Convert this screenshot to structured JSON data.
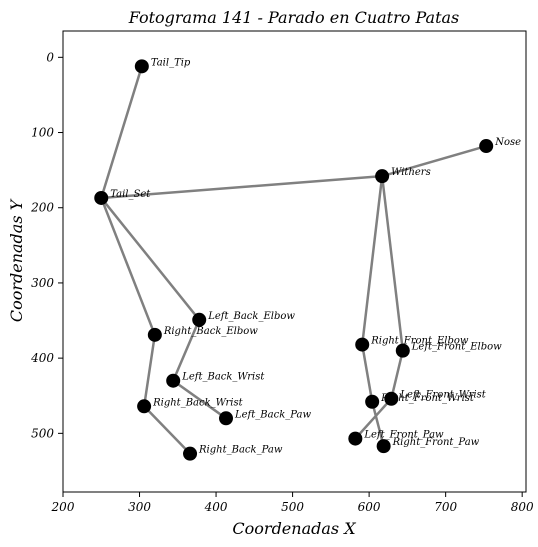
{
  "chart_data": {
    "type": "scatter",
    "title": "Fotograma 141 - Parado en Cuatro Patas",
    "xlabel": "Coordenadas X",
    "ylabel": "Coordenadas Y",
    "xlim": [
      200,
      805
    ],
    "ylim": [
      -35,
      578
    ],
    "y_inverted": true,
    "grid": false,
    "xticks": [
      200,
      300,
      400,
      500,
      600,
      700,
      800
    ],
    "yticks": [
      0,
      100,
      200,
      300,
      400,
      500
    ],
    "keypoints": [
      {
        "name": "Tail_Tip",
        "x": 303,
        "y": 12
      },
      {
        "name": "Tail_Set",
        "x": 250,
        "y": 187
      },
      {
        "name": "Nose",
        "x": 753,
        "y": 118
      },
      {
        "name": "Withers",
        "x": 617,
        "y": 158
      },
      {
        "name": "Left_Back_Elbow",
        "x": 378,
        "y": 349
      },
      {
        "name": "Right_Back_Elbow",
        "x": 320,
        "y": 369
      },
      {
        "name": "Left_Back_Wrist",
        "x": 344,
        "y": 430
      },
      {
        "name": "Right_Back_Wrist",
        "x": 306,
        "y": 464
      },
      {
        "name": "Left_Back_Paw",
        "x": 413,
        "y": 480
      },
      {
        "name": "Right_Back_Paw",
        "x": 366,
        "y": 527
      },
      {
        "name": "Right_Front_Elbow",
        "x": 591,
        "y": 382
      },
      {
        "name": "Left_Front_Elbow",
        "x": 644,
        "y": 390
      },
      {
        "name": "Left_Front_Wrist",
        "x": 629,
        "y": 454
      },
      {
        "name": "Right_Front_Wrist",
        "x": 604,
        "y": 458
      },
      {
        "name": "Left_Front_Paw",
        "x": 582,
        "y": 507
      },
      {
        "name": "Right_Front_Paw",
        "x": 619,
        "y": 517
      }
    ],
    "edges": [
      [
        "Tail_Tip",
        "Tail_Set"
      ],
      [
        "Tail_Set",
        "Withers"
      ],
      [
        "Withers",
        "Nose"
      ],
      [
        "Tail_Set",
        "Left_Back_Elbow"
      ],
      [
        "Left_Back_Elbow",
        "Left_Back_Wrist"
      ],
      [
        "Left_Back_Wrist",
        "Left_Back_Paw"
      ],
      [
        "Tail_Set",
        "Right_Back_Elbow"
      ],
      [
        "Right_Back_Elbow",
        "Right_Back_Wrist"
      ],
      [
        "Right_Back_Wrist",
        "Right_Back_Paw"
      ],
      [
        "Withers",
        "Right_Front_Elbow"
      ],
      [
        "Right_Front_Elbow",
        "Right_Front_Wrist"
      ],
      [
        "Right_Front_Wrist",
        "Right_Front_Paw"
      ],
      [
        "Withers",
        "Left_Front_Elbow"
      ],
      [
        "Left_Front_Elbow",
        "Left_Front_Wrist"
      ],
      [
        "Left_Front_Wrist",
        "Left_Front_Paw"
      ]
    ],
    "colors": {
      "bone": "#808080",
      "keypoint": "#000000"
    }
  }
}
